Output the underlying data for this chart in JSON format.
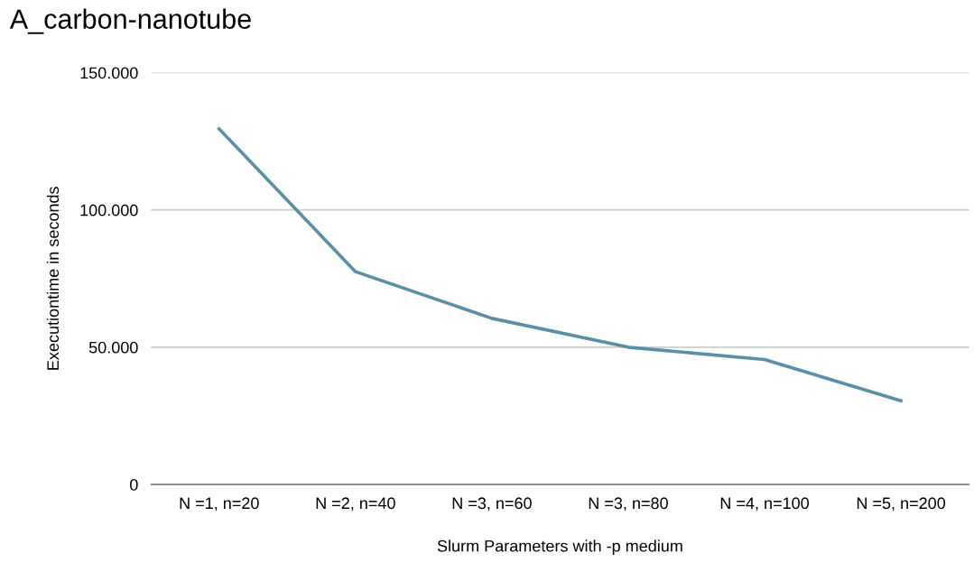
{
  "chart_data": {
    "type": "line",
    "title": "A_carbon-nanotube",
    "xlabel": "Slurm Parameters with -p medium",
    "ylabel": "Executiontime in seconds",
    "categories": [
      "N =1, n=20",
      "N =2, n=40",
      "N =3, n=60",
      "N =3, n=80",
      "N =4, n=100",
      "N =5, n=200"
    ],
    "series": [
      {
        "color": "#5b8fa8",
        "values": [
          129500,
          77500,
          60500,
          50000,
          45500,
          30500
        ]
      }
    ],
    "ylim": [
      0,
      150000
    ],
    "yticks": [
      0,
      {
        "value": 50000,
        "label": "50.000"
      },
      {
        "value": 100000,
        "label": "100.000"
      },
      {
        "value": 150000,
        "label": "150.000"
      }
    ],
    "grid": "y",
    "legend": false,
    "marker": "none",
    "line_style": "solid"
  }
}
